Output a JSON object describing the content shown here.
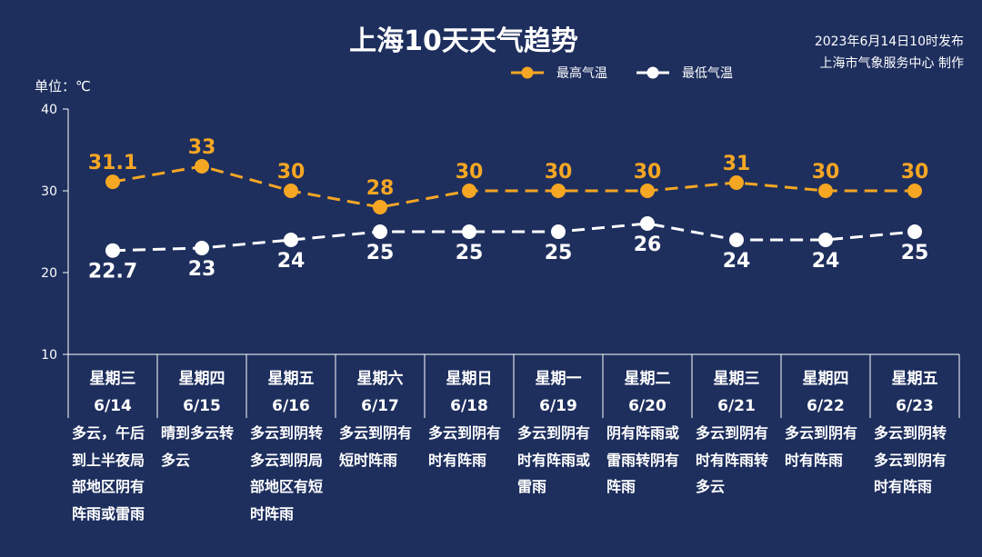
{
  "header": {
    "title": "上海10天天气趋势",
    "publish_line1": "2023年6月14日10时发布",
    "publish_line2": "上海市气象服务中心 制作"
  },
  "unit_label": "单位：℃",
  "colors": {
    "high": "#f5a623",
    "low": "#ffffff",
    "background": "#1e2f5e"
  },
  "chart_data": {
    "type": "line",
    "title": "上海10天天气趋势",
    "ylabel": "单位：℃",
    "ylim": [
      10,
      40
    ],
    "yticks": [
      10,
      20,
      30,
      40
    ],
    "grid": false,
    "legend_position": "top-right",
    "categories": [
      {
        "weekday": "星期三",
        "date": "6/14"
      },
      {
        "weekday": "星期四",
        "date": "6/15"
      },
      {
        "weekday": "星期五",
        "date": "6/16"
      },
      {
        "weekday": "星期六",
        "date": "6/17"
      },
      {
        "weekday": "星期日",
        "date": "6/18"
      },
      {
        "weekday": "星期一",
        "date": "6/19"
      },
      {
        "weekday": "星期二",
        "date": "6/20"
      },
      {
        "weekday": "星期三",
        "date": "6/21"
      },
      {
        "weekday": "星期四",
        "date": "6/22"
      },
      {
        "weekday": "星期五",
        "date": "6/23"
      }
    ],
    "series": [
      {
        "name": "最高气温",
        "color": "#f5a623",
        "values": [
          31.1,
          33,
          30,
          28,
          30,
          30,
          30,
          31,
          30,
          30
        ]
      },
      {
        "name": "最低气温",
        "color": "#ffffff",
        "values": [
          22.7,
          23,
          24,
          25,
          25,
          25,
          26,
          24,
          24,
          25
        ]
      }
    ],
    "conditions": [
      "多云，午后到上半夜局部地区阴有阵雨或雷雨",
      "晴到多云转多云",
      "多云到阴转多云到阴局部地区有短时阵雨",
      "多云到阴有短时阵雨",
      "多云到阴有时有阵雨",
      "多云到阴有时有阵雨或雷雨",
      "阴有阵雨或雷雨转阴有阵雨",
      "多云到阴有时有阵雨转多云",
      "多云到阴有时有阵雨",
      "多云到阴转多云到阴有时有阵雨"
    ]
  }
}
